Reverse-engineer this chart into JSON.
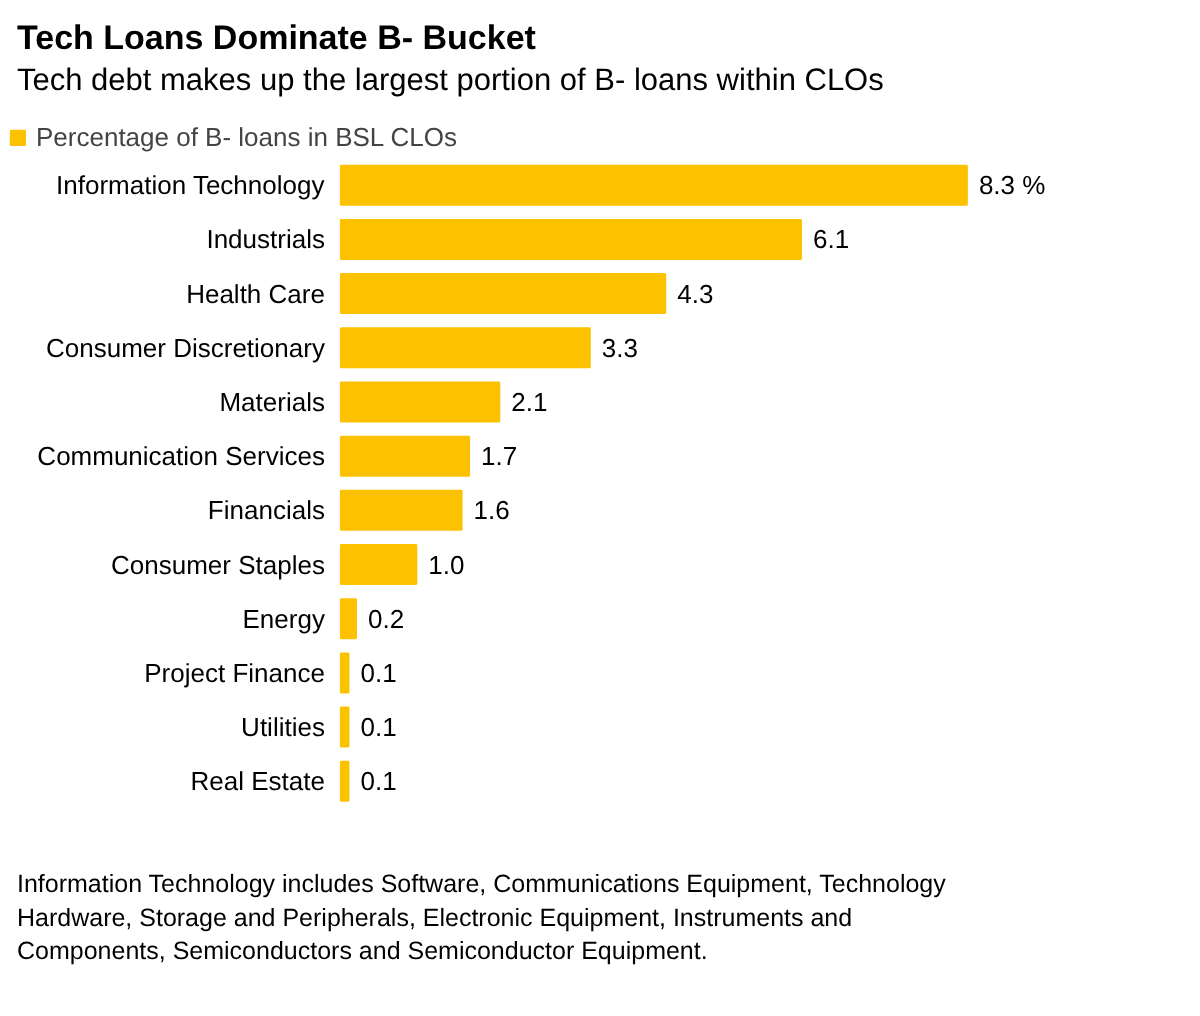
{
  "chart_data": {
    "type": "bar",
    "orientation": "horizontal",
    "title": "Tech Loans Dominate B- Bucket",
    "subtitle": "Tech debt makes up the largest portion of B- loans within CLOs",
    "categories": [
      "Information Technology",
      "Industrials",
      "Health Care",
      "Consumer Discretionary",
      "Materials",
      "Communication Services",
      "Financials",
      "Consumer Staples",
      "Energy",
      "Project Finance",
      "Utilities",
      "Real Estate"
    ],
    "series": [
      {
        "name": "Percentage of B- loans in BSL CLOs",
        "color": "#fcc200",
        "values": [
          8.3,
          6.1,
          4.3,
          3.3,
          2.1,
          1.7,
          1.6,
          1.0,
          0.2,
          0.1,
          0.1,
          0.1
        ],
        "value_labels": [
          "8.3 %",
          "6.1",
          "4.3",
          "3.3",
          "2.1",
          "1.7",
          "1.6",
          "1.0",
          "0.2",
          "0.1",
          "0.1",
          "0.1"
        ]
      }
    ],
    "legend": "top left",
    "annotations": [
      "Information Technology includes Software, Communications Equipment, Technology Hardware, Storage and Peripherals, Electronic Equipment, Instruments and Components, Semiconductors and Semiconductor Equipment."
    ]
  }
}
